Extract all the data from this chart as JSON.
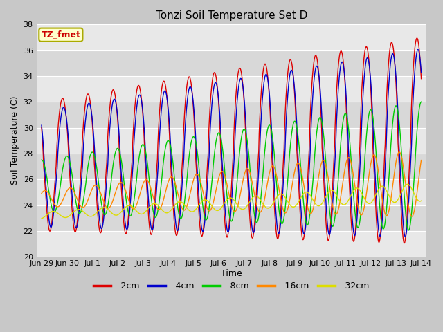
{
  "title": "Tonzi Soil Temperature Set D",
  "xlabel": "Time",
  "ylabel": "Soil Temperature (C)",
  "ylim": [
    20,
    38
  ],
  "background_color": "#c8c8c8",
  "plot_bg_color": "#e0e0e0",
  "annotation_text": "TZ_fmet",
  "annotation_bg": "#ffffcc",
  "annotation_border": "#aaaa00",
  "annotation_text_color": "#cc0000",
  "series_colors": [
    "#dd0000",
    "#0000cc",
    "#00cc00",
    "#ff8800",
    "#dddd00"
  ],
  "series_labels": [
    "-2cm",
    "-4cm",
    "-8cm",
    "-16cm",
    "-32cm"
  ],
  "tick_labels": [
    "Jun 29",
    "Jun 30",
    "Jul 1",
    "Jul 2",
    "Jul 3",
    "Jul 4",
    "Jul 5",
    "Jul 6",
    "Jul 7",
    "Jul 8",
    "Jul 9",
    "Jul 10",
    "Jul 11",
    "Jul 12",
    "Jul 13",
    "Jul 14"
  ],
  "tick_positions": [
    0,
    1,
    2,
    3,
    4,
    5,
    6,
    7,
    8,
    9,
    10,
    11,
    12,
    13,
    14,
    15
  ],
  "yticks": [
    20,
    22,
    24,
    26,
    28,
    30,
    32,
    34,
    36,
    38
  ],
  "band_colors": [
    "#e8e8e8",
    "#d8d8d8"
  ]
}
